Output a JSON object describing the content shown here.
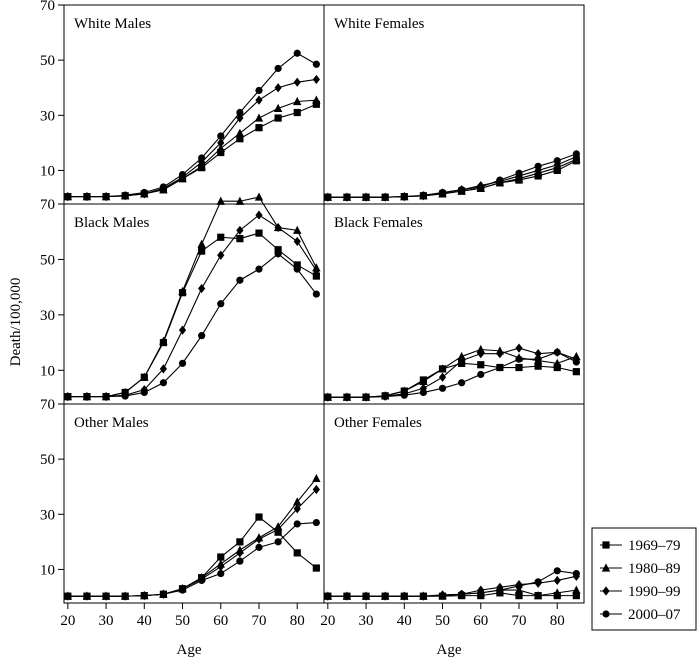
{
  "chart_data": {
    "type": "line",
    "ylabel": "Death/100,000",
    "xlabel": "Age",
    "x": [
      20,
      25,
      30,
      35,
      40,
      45,
      50,
      55,
      60,
      65,
      70,
      75,
      80,
      85
    ],
    "xticks": [
      20,
      30,
      40,
      50,
      60,
      70,
      80
    ],
    "yticks": [
      10,
      30,
      50,
      70
    ],
    "ylim": [
      0,
      70
    ],
    "xlim": [
      19,
      87
    ],
    "grid": false,
    "legend_position": "right-bottom",
    "legend": [
      "1969–79",
      "1980–89",
      "1990–99",
      "2000–07"
    ],
    "marker_names": [
      "square",
      "triangle",
      "diamond",
      "circle"
    ],
    "panels": [
      {
        "title": "White Males",
        "series": [
          {
            "name": "1969–79",
            "values": [
              0.5,
              0.5,
              0.5,
              0.8,
              1.5,
              3,
              7,
              11,
              16.5,
              21.5,
              25.5,
              29,
              31,
              34
            ]
          },
          {
            "name": "1980–89",
            "values": [
              0.5,
              0.5,
              0.5,
              0.8,
              1.5,
              3,
              7,
              11.5,
              18,
              23.5,
              29,
              32.5,
              35,
              35.5
            ]
          },
          {
            "name": "1990–99",
            "values": [
              0.5,
              0.5,
              0.5,
              0.8,
              1.5,
              3.5,
              7.5,
              13,
              20,
              29,
              35.5,
              40,
              42,
              43
            ]
          },
          {
            "name": "2000–07",
            "values": [
              0.5,
              0.5,
              0.5,
              1,
              2,
              4,
              8.5,
              14.5,
              22.5,
              31,
              39,
              47,
              52.5,
              48.5
            ]
          }
        ]
      },
      {
        "title": "White Females",
        "series": [
          {
            "name": "1969–79",
            "values": [
              0.3,
              0.3,
              0.3,
              0.3,
              0.5,
              0.8,
              1.5,
              2.5,
              3.5,
              5.5,
              6.5,
              8,
              10,
              13.5
            ]
          },
          {
            "name": "1980–89",
            "values": [
              0.3,
              0.3,
              0.3,
              0.3,
              0.5,
              0.8,
              1.5,
              2.5,
              3.5,
              5.5,
              7,
              9,
              11,
              14
            ]
          },
          {
            "name": "1990–99",
            "values": [
              0.3,
              0.3,
              0.3,
              0.3,
              0.5,
              0.8,
              1.8,
              3,
              4.5,
              6,
              8,
              10,
              12,
              15
            ]
          },
          {
            "name": "2000–07",
            "values": [
              0.3,
              0.3,
              0.3,
              0.3,
              0.5,
              1,
              2,
              3,
              4,
              6.5,
              9,
              11.5,
              13.5,
              16
            ]
          }
        ]
      },
      {
        "title": "Black Males",
        "series": [
          {
            "name": "1969–79",
            "values": [
              0.5,
              0.5,
              0.5,
              2,
              7.5,
              20,
              38,
              53,
              58,
              57.5,
              59.5,
              53.5,
              48,
              44
            ]
          },
          {
            "name": "1980–89",
            "values": [
              0.5,
              0.5,
              0.5,
              2,
              7.5,
              20.5,
              38.5,
              55.5,
              71,
              71,
              72.5,
              61.5,
              60.5,
              47
            ]
          },
          {
            "name": "1990–99",
            "values": [
              0.5,
              0.5,
              0.5,
              1,
              3,
              10.5,
              24.5,
              39.5,
              51.5,
              60.5,
              66,
              61.5,
              56.5,
              46
            ]
          },
          {
            "name": "2000–07",
            "values": [
              0.5,
              0.5,
              0.5,
              0.7,
              2,
              5.5,
              12.5,
              22.5,
              34,
              42.5,
              46.5,
              52,
              46.5,
              37.5
            ]
          }
        ]
      },
      {
        "title": "Black Females",
        "series": [
          {
            "name": "1969–79",
            "values": [
              0.3,
              0.3,
              0.3,
              0.8,
              2.5,
              6.5,
              10.5,
              12.5,
              12,
              11,
              11,
              11.5,
              11,
              9.5
            ]
          },
          {
            "name": "1980–89",
            "values": [
              0.3,
              0.3,
              0.3,
              0.8,
              2.5,
              6,
              10.5,
              15,
              17.5,
              17,
              14.5,
              13.5,
              12.5,
              15
            ]
          },
          {
            "name": "1990–99",
            "values": [
              0.3,
              0.3,
              0.3,
              0.6,
              1.5,
              3.5,
              7.5,
              13.5,
              16,
              16,
              18,
              16,
              16.5,
              14
            ]
          },
          {
            "name": "2000–07",
            "values": [
              0.3,
              0.3,
              0.3,
              0.5,
              1,
              2,
              3.5,
              5.5,
              8.5,
              11,
              14,
              14,
              16.5,
              13
            ]
          }
        ]
      },
      {
        "title": "Other Males",
        "series": [
          {
            "name": "1969–79",
            "values": [
              0.3,
              0.3,
              0.3,
              0.3,
              0.5,
              1,
              3,
              7,
              14.5,
              20,
              29,
              23.5,
              16,
              10.5
            ]
          },
          {
            "name": "1980–89",
            "values": [
              0.3,
              0.3,
              0.3,
              0.3,
              0.5,
              1,
              3,
              7,
              12,
              17,
              21.5,
              25.5,
              34.5,
              43
            ]
          },
          {
            "name": "1990–99",
            "values": [
              0.3,
              0.3,
              0.3,
              0.3,
              0.5,
              1,
              3,
              6.5,
              11,
              16,
              21,
              24.5,
              32,
              39
            ]
          },
          {
            "name": "2000–07",
            "values": [
              0.3,
              0.3,
              0.3,
              0.3,
              0.5,
              1,
              2.5,
              6,
              8.5,
              13,
              18,
              20,
              26.5,
              27
            ]
          }
        ]
      },
      {
        "title": "Other Females",
        "series": [
          {
            "name": "1969–79",
            "values": [
              0.3,
              0.3,
              0.3,
              0.3,
              0.3,
              0.3,
              0.3,
              0.5,
              0.5,
              1.5,
              0.5,
              0.5,
              0.5,
              0.5
            ]
          },
          {
            "name": "1980–89",
            "values": [
              0.3,
              0.3,
              0.3,
              0.3,
              0.3,
              0.3,
              0.5,
              1,
              1.5,
              2.5,
              2.5,
              0.5,
              1.5,
              2.5
            ]
          },
          {
            "name": "1990–99",
            "values": [
              0.3,
              0.3,
              0.3,
              0.3,
              0.3,
              0.3,
              0.8,
              1,
              2.5,
              3.5,
              4.5,
              5,
              6,
              7.5
            ]
          },
          {
            "name": "2000–07",
            "values": [
              0.3,
              0.3,
              0.3,
              0.3,
              0.3,
              0.3,
              0.5,
              1,
              1.5,
              2.5,
              4,
              5.5,
              9.5,
              8.5
            ]
          }
        ]
      }
    ]
  }
}
